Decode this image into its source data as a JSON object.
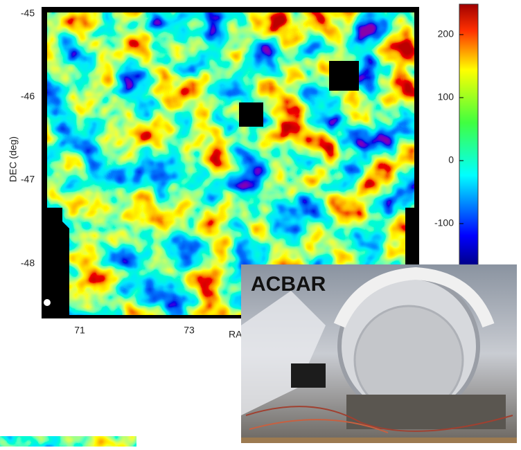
{
  "figure": {
    "y_axis": {
      "label": "DEC (deg)",
      "ticks": [
        "-45",
        "-46",
        "-47",
        "-48"
      ]
    },
    "x_axis": {
      "label": "RA",
      "ticks": [
        "71",
        "73"
      ]
    },
    "colorbar": {
      "ticks": [
        "200",
        "100",
        "0",
        "-100"
      ]
    }
  },
  "photo": {
    "label": "ACBAR"
  }
}
